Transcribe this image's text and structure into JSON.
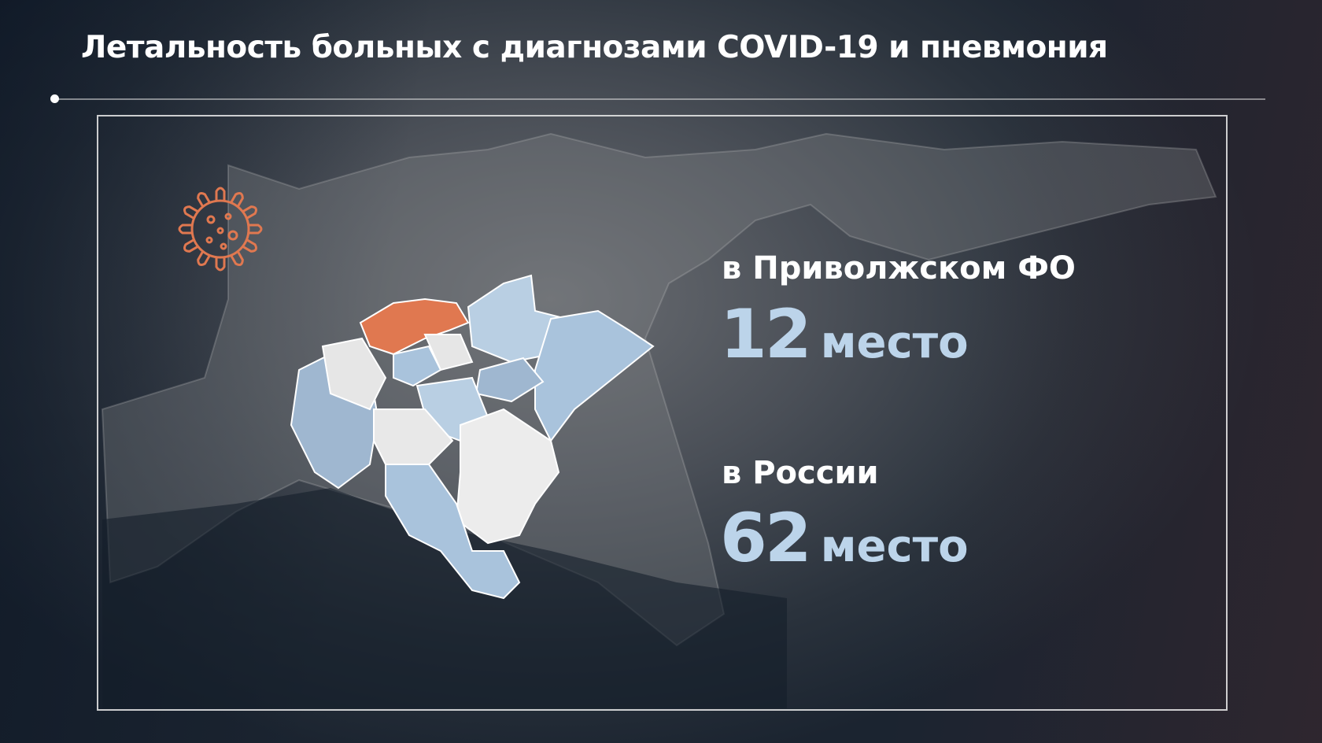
{
  "title": "Летальность больных с диагнозами COVID-19 и пневмония",
  "district": {
    "label": "в Приволжском ФО",
    "rank": "12",
    "rank_word": "место"
  },
  "russia": {
    "label": "в России",
    "rank": "62",
    "rank_word": "место"
  },
  "colors": {
    "highlight_region": "#e07850",
    "rank_text": "#bcd4ea",
    "virus_icon": "#e07850",
    "region_light": "#e8e8e8",
    "region_blue": "#a9c3dc"
  },
  "icons": {
    "virus": "virus-icon"
  }
}
